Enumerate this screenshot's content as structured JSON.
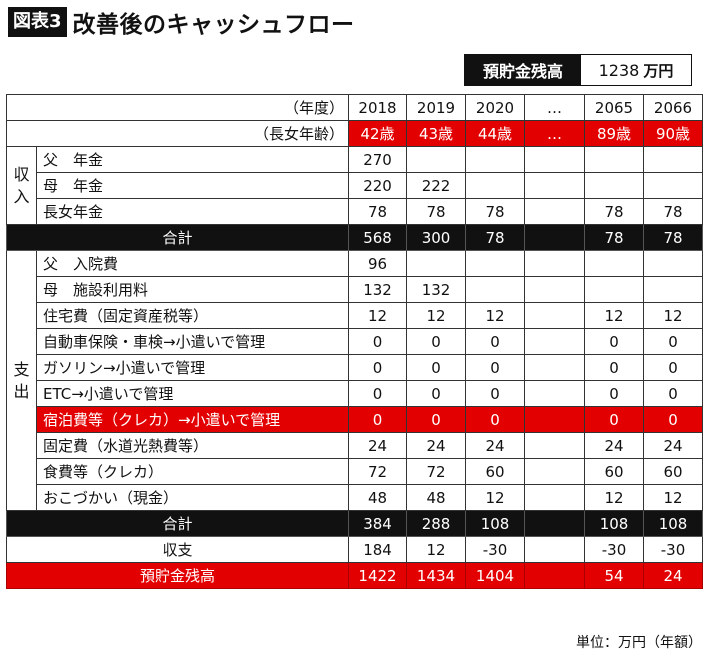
{
  "figure_tag": "図表3",
  "title": "改善後のキャッシュフロー",
  "balance": {
    "label": "預貯金残高",
    "value": "1238",
    "unit": "万円"
  },
  "header": {
    "year_label": "（年度）",
    "age_label": "（長女年齢）",
    "years": [
      "2018",
      "2019",
      "2020",
      "…",
      "2065",
      "2066"
    ],
    "ages": [
      "42歳",
      "43歳",
      "44歳",
      "…",
      "89歳",
      "90歳"
    ]
  },
  "income": {
    "category": [
      "収",
      "入"
    ],
    "rows": [
      {
        "label": "父　年金",
        "values": [
          "270",
          "",
          "",
          "",
          "",
          ""
        ]
      },
      {
        "label": "母　年金",
        "values": [
          "220",
          "222",
          "",
          "",
          "",
          ""
        ]
      },
      {
        "label": "長女年金",
        "values": [
          "78",
          "78",
          "78",
          "",
          "78",
          "78"
        ]
      }
    ],
    "total": {
      "label": "合計",
      "values": [
        "568",
        "300",
        "78",
        "",
        "78",
        "78"
      ]
    }
  },
  "expense": {
    "category": [
      "支",
      "出"
    ],
    "rows": [
      {
        "label": "父　入院費",
        "values": [
          "96",
          "",
          "",
          "",
          "",
          ""
        ]
      },
      {
        "label": "母　施設利用料",
        "values": [
          "132",
          "132",
          "",
          "",
          "",
          ""
        ]
      },
      {
        "label": "住宅費（固定資産税等）",
        "values": [
          "12",
          "12",
          "12",
          "",
          "12",
          "12"
        ]
      },
      {
        "label": "自動車保険・車検→小遣いで管理",
        "values": [
          "0",
          "0",
          "0",
          "",
          "0",
          "0"
        ]
      },
      {
        "label": "ガソリン→小遣いで管理",
        "values": [
          "0",
          "0",
          "0",
          "",
          "0",
          "0"
        ]
      },
      {
        "label": "ETC→小遣いで管理",
        "values": [
          "0",
          "0",
          "0",
          "",
          "0",
          "0"
        ]
      },
      {
        "label": "宿泊費等（クレカ）→小遣いで管理",
        "values": [
          "0",
          "0",
          "0",
          "",
          "0",
          "0"
        ],
        "highlight": true
      },
      {
        "label": "固定費（水道光熱費等）",
        "values": [
          "24",
          "24",
          "24",
          "",
          "24",
          "24"
        ]
      },
      {
        "label": "食費等（クレカ）",
        "values": [
          "72",
          "72",
          "60",
          "",
          "60",
          "60"
        ]
      },
      {
        "label": "おこづかい（現金）",
        "values": [
          "48",
          "48",
          "12",
          "",
          "12",
          "12"
        ]
      }
    ],
    "total": {
      "label": "合計",
      "values": [
        "384",
        "288",
        "108",
        "",
        "108",
        "108"
      ]
    }
  },
  "net": {
    "label": "収支",
    "values": [
      "184",
      "12",
      "-30",
      "",
      "-30",
      "-30"
    ]
  },
  "savings": {
    "label": "預貯金残高",
    "values": [
      "1422",
      "1434",
      "1404",
      "",
      "54",
      "24"
    ]
  },
  "unit_note": "単位：万円（年額）",
  "colors": {
    "accent_red": "#e30000",
    "black": "#111111"
  }
}
